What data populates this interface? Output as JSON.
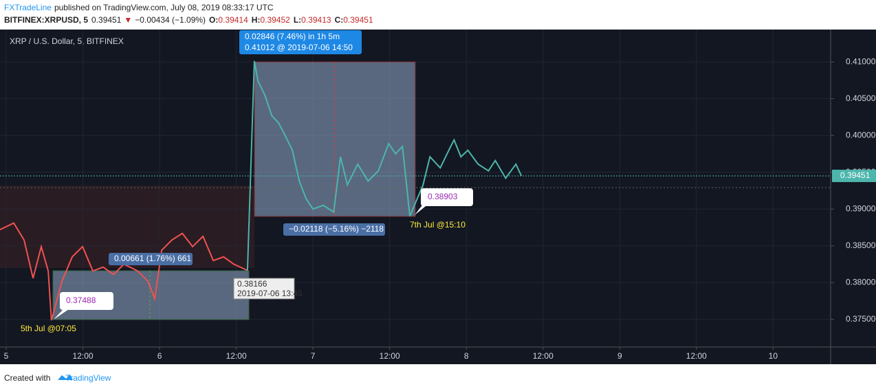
{
  "header": {
    "publisher": "FXTradeLine",
    "published": "published on TradingView.com, July 08, 2019 08:33:17 UTC",
    "symbol": "BITFINEX:XRPUSD, 5",
    "last": "0.39451",
    "arrow": "▼",
    "change": "−0.00434 (−1.09%)",
    "ohlc": [
      {
        "label": "O:",
        "value": "0.39414"
      },
      {
        "label": "H:",
        "value": "0.39452"
      },
      {
        "label": "L:",
        "value": "0.39413"
      },
      {
        "label": "C:",
        "value": "0.39451"
      }
    ]
  },
  "footer": {
    "created": "Created with",
    "brand": "TradingView"
  },
  "chart_data": {
    "type": "line",
    "title": "XRP / U.S. Dollar, 5, BITFINEX",
    "xlim": [
      -0.97,
      129
    ],
    "ylim": [
      0.37125,
      0.4144
    ],
    "xticks": [
      {
        "value": 0,
        "label": "5"
      },
      {
        "value": 12,
        "label": "12:00"
      },
      {
        "value": 24,
        "label": "6"
      },
      {
        "value": 36,
        "label": "12:00"
      },
      {
        "value": 48,
        "label": "7"
      },
      {
        "value": 60,
        "label": "12:00"
      },
      {
        "value": 72,
        "label": "8"
      },
      {
        "value": 84,
        "label": "12:00"
      },
      {
        "value": 96,
        "label": "9"
      },
      {
        "value": 108,
        "label": "12:00"
      },
      {
        "value": 120,
        "label": "10"
      }
    ],
    "yticks": [
      {
        "value": 0.375,
        "label": "0.37500"
      },
      {
        "value": 0.38,
        "label": "0.38000"
      },
      {
        "value": 0.385,
        "label": "0.38500"
      },
      {
        "value": 0.39,
        "label": "0.39000"
      },
      {
        "value": 0.395,
        "label": "0.39500"
      },
      {
        "value": 0.4,
        "label": "0.40000"
      },
      {
        "value": 0.405,
        "label": "0.40500"
      },
      {
        "value": 0.41,
        "label": "0.41000"
      }
    ],
    "grid": true,
    "last_price": {
      "value": 0.39451,
      "label": "0.39451"
    },
    "series": [
      {
        "color": "#ef5350",
        "x": [
          -0.97,
          1.18,
          2.8,
          4.2,
          5.49,
          6.57,
          7.08,
          8.72,
          10.33,
          11.95,
          13.56,
          15.18,
          16.79,
          18.41,
          20.56,
          22.17,
          23.25,
          24.33,
          25.94,
          27.56,
          29.17,
          30.79,
          32.4,
          34.01,
          35.63,
          37.75
        ],
        "values": [
          0.3872,
          0.3881,
          0.3858,
          0.3806,
          0.3849,
          0.3816,
          0.37488,
          0.3802,
          0.3835,
          0.3849,
          0.3816,
          0.3821,
          0.3811,
          0.3825,
          0.3816,
          0.3802,
          0.3778,
          0.3844,
          0.3858,
          0.3867,
          0.3849,
          0.3863,
          0.383,
          0.3835,
          0.3825,
          0.38166
        ]
      },
      {
        "color": "#4db6ac",
        "x": [
          37.75,
          38.83,
          39.4,
          40.47,
          41.55,
          42.63,
          43.7,
          44.78,
          45.86,
          46.93,
          48.01,
          49.62,
          51.24,
          52.31,
          53.39,
          55.01,
          56.62,
          58.23,
          59.85,
          60.93,
          62.0,
          63.17,
          65.23,
          66.31,
          67.92,
          69.54,
          70.08,
          71.15,
          72.23,
          73.84,
          75.46,
          76.53,
          78.15,
          79.76,
          80.62
        ],
        "values": [
          0.38166,
          0.41012,
          0.4074,
          0.4055,
          0.4027,
          0.4017,
          0.3999,
          0.398,
          0.3938,
          0.3914,
          0.39,
          0.3905,
          0.3896,
          0.3971,
          0.3933,
          0.3961,
          0.3938,
          0.3952,
          0.3989,
          0.3975,
          0.3985,
          0.38903,
          0.3933,
          0.3971,
          0.3956,
          0.3985,
          0.3994,
          0.3971,
          0.398,
          0.3961,
          0.3952,
          0.3966,
          0.3942,
          0.3961,
          0.39451
        ]
      }
    ],
    "annotations": {
      "rise": "0.02846 (7.46%) in 1h 5m",
      "rise_detail": "0.41012  @ 2019-07-06  14:50",
      "gain": "0.00661 (1.76%) 661",
      "pivot": "0.38166",
      "pivot_date": "2019-07-06 13:45",
      "drop": "−0.02118 (−5.16%) −2118",
      "low1": "0.37488",
      "low1_date": "5th Jul @07:05",
      "low2": "0.38903",
      "low2_date": "7th Jul @15:10"
    }
  }
}
